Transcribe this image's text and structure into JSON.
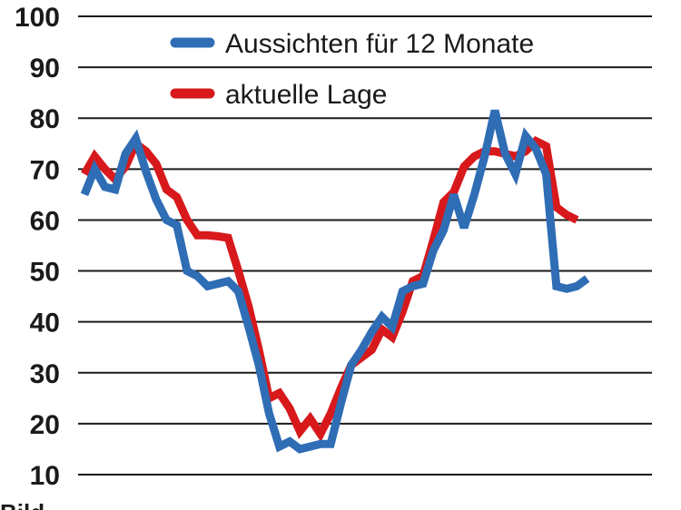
{
  "chart_data": {
    "type": "line",
    "ylim": [
      10,
      100
    ],
    "yticks": [
      10,
      20,
      30,
      40,
      50,
      60,
      70,
      80,
      90,
      100
    ],
    "grid": true,
    "legend_position": "top-right",
    "x": [
      0,
      1,
      2,
      3,
      4,
      5,
      6,
      7,
      8,
      9,
      10,
      11,
      12,
      13,
      14,
      15,
      16,
      17,
      18,
      19,
      20,
      21,
      22,
      23,
      24,
      25,
      26,
      27,
      28,
      29,
      30,
      31,
      32,
      33,
      34,
      35,
      36,
      37,
      38,
      39,
      40,
      41,
      42,
      43,
      44,
      45,
      46,
      47,
      48,
      49,
      50,
      51,
      52,
      53,
      54,
      55,
      56,
      57
    ],
    "series": [
      {
        "name": "Aussichten für 12 Monate",
        "color": "#2f6db5",
        "values": [
          65,
          70,
          66.5,
          66,
          73,
          76,
          69.5,
          64,
          60,
          59,
          50,
          49,
          47,
          47.5,
          48,
          46,
          39,
          31.5,
          22,
          15.5,
          16.5,
          15,
          15.5,
          16,
          16,
          24,
          31.5,
          34.5,
          38,
          41,
          39,
          46,
          47,
          47.5,
          54,
          58,
          65,
          58.5,
          65,
          72.5,
          81.5,
          73,
          69,
          76.5,
          74,
          69,
          47,
          46.5,
          47,
          48.5,
          null,
          null,
          null,
          null,
          null,
          null,
          null,
          null
        ]
      },
      {
        "name": "aktuelle Lage",
        "color": "#d7191c",
        "values": [
          69,
          72.5,
          70,
          68,
          70.5,
          75,
          73.5,
          71,
          66,
          64.5,
          60,
          57,
          57,
          56.8,
          56.5,
          50,
          43,
          34.5,
          25,
          26,
          23,
          18.5,
          21,
          18,
          22,
          27,
          31.5,
          33,
          34.5,
          38.5,
          37,
          42,
          48,
          49,
          56,
          63.5,
          65.5,
          70.5,
          72.5,
          73.5,
          73.5,
          73,
          72.5,
          73.5,
          75.5,
          74.5,
          62.5,
          61,
          60,
          null,
          null,
          null,
          null,
          null,
          null,
          null,
          null,
          null
        ]
      }
    ]
  },
  "cut_text": "Bild"
}
